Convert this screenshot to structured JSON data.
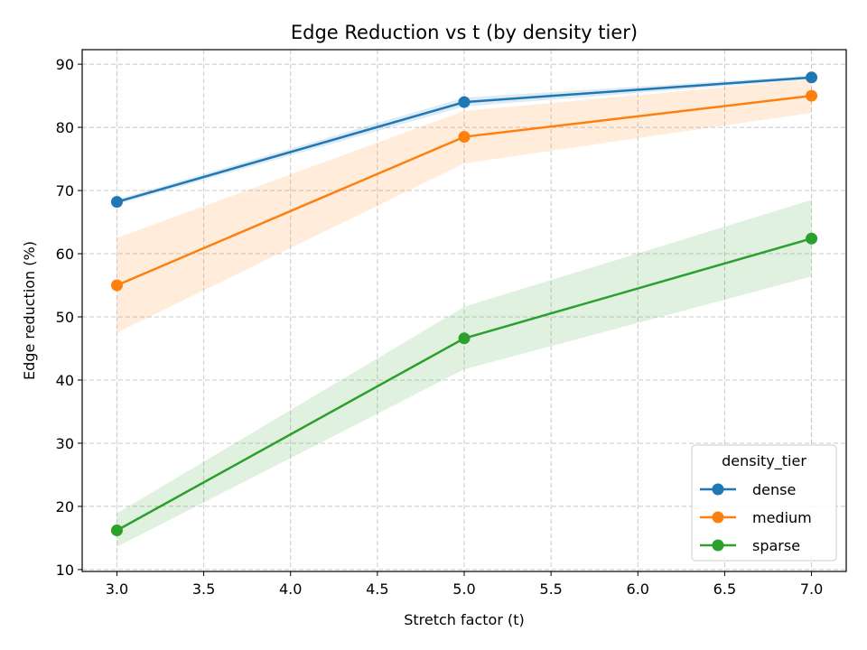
{
  "chart_data": {
    "type": "line",
    "title": "Edge Reduction vs t (by density tier)",
    "xlabel": "Stretch factor (t)",
    "ylabel": "Edge reduction (%)",
    "xlim": [
      2.8,
      7.2
    ],
    "ylim": [
      9.7,
      92.3
    ],
    "xticks": [
      "3.0",
      "3.5",
      "4.0",
      "4.5",
      "5.0",
      "5.5",
      "6.0",
      "6.5",
      "7.0"
    ],
    "yticks": [
      "10",
      "20",
      "30",
      "40",
      "50",
      "60",
      "70",
      "80",
      "90"
    ],
    "grid": true,
    "legend": {
      "title": "density_tier",
      "placement": "lower-right"
    },
    "x": [
      3.0,
      5.0,
      7.0
    ],
    "series": [
      {
        "name": "dense",
        "color": "#1f77b4",
        "values": [
          68.2,
          84.0,
          87.9
        ],
        "band_low": [
          67.8,
          83.3,
          87.6
        ],
        "band_high": [
          68.6,
          84.7,
          88.2
        ]
      },
      {
        "name": "medium",
        "color": "#ff7f0e",
        "values": [
          55.0,
          78.5,
          85.0
        ],
        "band_low": [
          47.5,
          74.3,
          82.3
        ],
        "band_high": [
          62.5,
          82.6,
          87.6
        ]
      },
      {
        "name": "sparse",
        "color": "#2ca02c",
        "values": [
          16.2,
          46.6,
          62.4
        ],
        "band_low": [
          13.6,
          41.7,
          56.4
        ],
        "band_high": [
          18.9,
          51.6,
          68.5
        ]
      }
    ]
  }
}
